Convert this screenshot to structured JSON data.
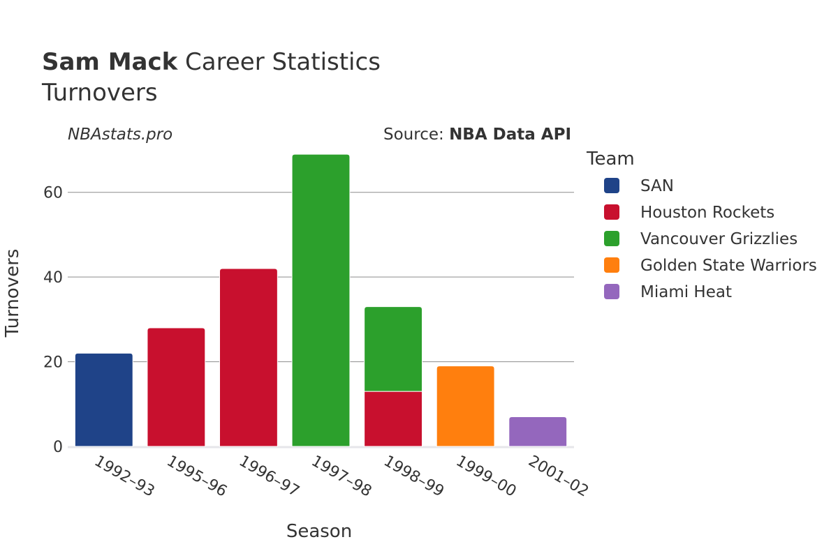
{
  "header": {
    "title_bold": "Sam Mack",
    "title_rest": " Career Statistics",
    "subtitle": "Turnovers"
  },
  "watermark": "NBAstats.pro",
  "source": {
    "prefix": "Source: ",
    "name": "NBA Data API"
  },
  "legend": {
    "title": "Team",
    "items": [
      {
        "name": "SAN",
        "color": "#1f4388"
      },
      {
        "name": "Houston Rockets",
        "color": "#c8102e"
      },
      {
        "name": "Vancouver Grizzlies",
        "color": "#2ca02c"
      },
      {
        "name": "Golden State Warriors",
        "color": "#ff7f0e"
      },
      {
        "name": "Miami Heat",
        "color": "#9467bd"
      }
    ]
  },
  "chart_data": {
    "type": "bar",
    "stacked": true,
    "title": "Sam Mack Career Statistics",
    "subtitle": "Turnovers",
    "xlabel": "Season",
    "ylabel": "Turnovers",
    "categories": [
      "1992–93",
      "1995–96",
      "1996–97",
      "1997–98",
      "1998–99",
      "1999–00",
      "2001–02"
    ],
    "ylim": [
      0,
      70
    ],
    "yticks": [
      0,
      20,
      40,
      60
    ],
    "grid": true,
    "legend_position": "right",
    "series": [
      {
        "name": "SAN",
        "color": "#1f4388",
        "values": [
          22,
          0,
          0,
          0,
          0,
          0,
          0
        ]
      },
      {
        "name": "Houston Rockets",
        "color": "#c8102e",
        "values": [
          0,
          28,
          42,
          0,
          13,
          0,
          0
        ]
      },
      {
        "name": "Vancouver Grizzlies",
        "color": "#2ca02c",
        "values": [
          0,
          0,
          0,
          69,
          20,
          0,
          0
        ]
      },
      {
        "name": "Golden State Warriors",
        "color": "#ff7f0e",
        "values": [
          0,
          0,
          0,
          0,
          0,
          19,
          0
        ]
      },
      {
        "name": "Miami Heat",
        "color": "#9467bd",
        "values": [
          0,
          0,
          0,
          0,
          0,
          0,
          7
        ]
      }
    ]
  }
}
